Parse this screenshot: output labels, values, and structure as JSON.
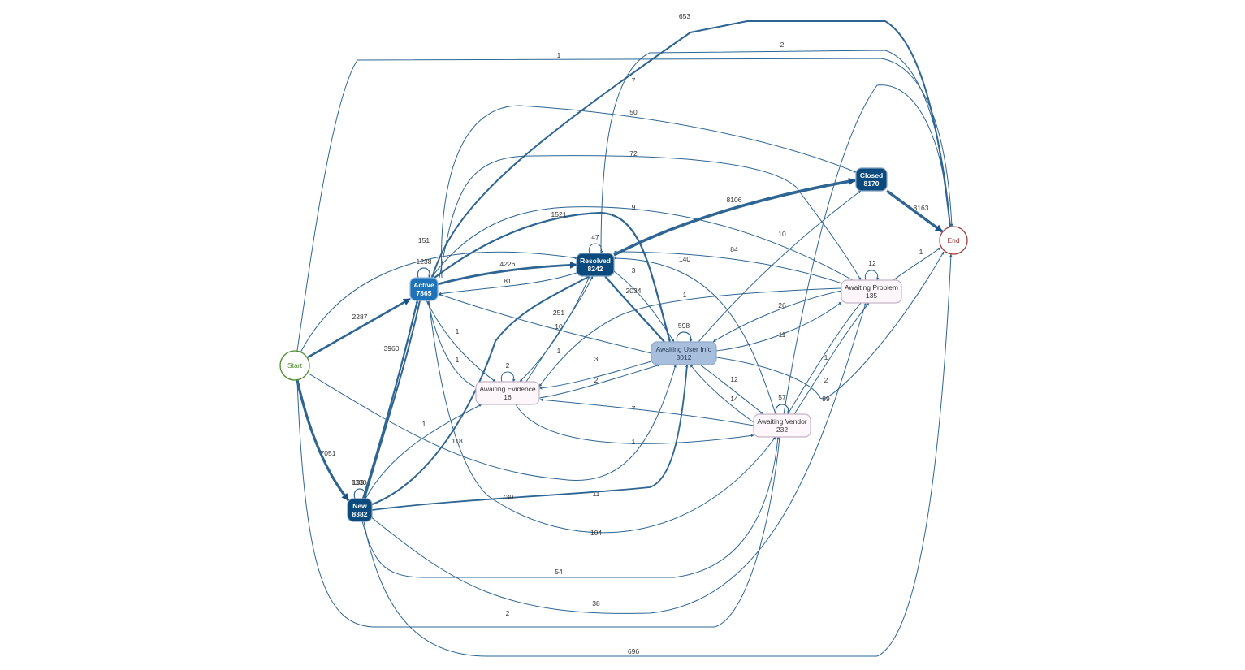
{
  "colors": {
    "edge": "#2e6593",
    "dark_node": "#0b4a7c",
    "active_node": "#1d72b8",
    "wait_user_node": "#a7bedd",
    "pink_node_fill": "#fdf6fa",
    "pink_node_stroke": "#c7b3c8",
    "start_stroke": "#4d8b2a",
    "end_stroke": "#a33b3b"
  },
  "nodes": {
    "start": {
      "label": "Start"
    },
    "end": {
      "label": "End"
    },
    "active": {
      "label": "Active",
      "count": "7865"
    },
    "new": {
      "label": "New",
      "count": "8382"
    },
    "resolved": {
      "label": "Resolved",
      "count": "8242"
    },
    "closed": {
      "label": "Closed",
      "count": "8170"
    },
    "awaiting_user_info": {
      "label": "Awaiting User Info",
      "count": "3012"
    },
    "awaiting_evidence": {
      "label": "Awaiting Evidence",
      "count": "16"
    },
    "awaiting_problem": {
      "label": "Awaiting Problem",
      "count": "135"
    },
    "awaiting_vendor": {
      "label": "Awaiting Vendor",
      "count": "232"
    }
  },
  "edges": [
    {
      "from": "start",
      "to": "active",
      "value": "2287"
    },
    {
      "from": "start",
      "to": "new",
      "value": "7051"
    },
    {
      "from": "start",
      "to": "resolved",
      "value": "151"
    },
    {
      "from": "start",
      "to": "end",
      "value": "1"
    },
    {
      "from": "start",
      "to": "awaiting_user_info",
      "value": "11"
    },
    {
      "from": "start",
      "to": "awaiting_vendor",
      "value": "2"
    },
    {
      "from": "active",
      "to": "active",
      "value": "1238"
    },
    {
      "from": "active",
      "to": "resolved",
      "value": "4226"
    },
    {
      "from": "resolved",
      "to": "active",
      "value": "81"
    },
    {
      "from": "active",
      "to": "end",
      "value": "653"
    },
    {
      "from": "active",
      "to": "closed",
      "value": "50"
    },
    {
      "from": "active",
      "to": "awaiting_problem",
      "value": "72"
    },
    {
      "from": "active",
      "to": "awaiting_user_info",
      "value": "1521"
    },
    {
      "from": "active",
      "to": "awaiting_evidence",
      "value": "1"
    },
    {
      "from": "awaiting_evidence",
      "to": "active",
      "value": "1"
    },
    {
      "from": "active",
      "to": "awaiting_vendor",
      "value": "104"
    },
    {
      "from": "active",
      "to": "new",
      "value": "1330"
    },
    {
      "from": "new",
      "to": "new",
      "value": "133"
    },
    {
      "from": "new",
      "to": "active",
      "value": "3960"
    },
    {
      "from": "new",
      "to": "resolved",
      "value": "251"
    },
    {
      "from": "new",
      "to": "awaiting_user_info",
      "value": "730"
    },
    {
      "from": "new",
      "to": "awaiting_evidence",
      "value": "1"
    },
    {
      "from": "new",
      "to": "awaiting_vendor",
      "value": "54"
    },
    {
      "from": "new",
      "to": "end",
      "value": "696"
    },
    {
      "from": "new",
      "to": "awaiting_problem",
      "value": "38"
    },
    {
      "from": "resolved",
      "to": "resolved",
      "value": "47"
    },
    {
      "from": "resolved",
      "to": "closed",
      "value": "8106"
    },
    {
      "from": "resolved",
      "to": "end",
      "value": "2"
    },
    {
      "from": "resolved",
      "to": "awaiting_user_info",
      "value": "3"
    },
    {
      "from": "awaiting_user_info",
      "to": "resolved",
      "value": "2034"
    },
    {
      "from": "resolved",
      "to": "awaiting_evidence",
      "value": "10"
    },
    {
      "from": "awaiting_evidence",
      "to": "resolved",
      "value": "1"
    },
    {
      "from": "closed",
      "to": "end",
      "value": "8163"
    },
    {
      "from": "awaiting_user_info",
      "to": "awaiting_user_info",
      "value": "598"
    },
    {
      "from": "awaiting_user_info",
      "to": "active",
      "value": "118"
    },
    {
      "from": "awaiting_user_info",
      "to": "closed",
      "value": "10"
    },
    {
      "from": "awaiting_problem",
      "to": "awaiting_user_info",
      "value": "26"
    },
    {
      "from": "awaiting_user_info",
      "to": "awaiting_problem",
      "value": "11"
    },
    {
      "from": "awaiting_user_info",
      "to": "awaiting_evidence",
      "value": "2"
    },
    {
      "from": "awaiting_evidence",
      "to": "awaiting_user_info",
      "value": "3"
    },
    {
      "from": "awaiting_user_info",
      "to": "awaiting_vendor",
      "value": "12"
    },
    {
      "from": "awaiting_vendor",
      "to": "awaiting_user_info",
      "value": "14"
    },
    {
      "from": "awaiting_user_info",
      "to": "end",
      "value": "99"
    },
    {
      "from": "awaiting_evidence",
      "to": "awaiting_evidence",
      "value": "2"
    },
    {
      "from": "awaiting_evidence",
      "to": "awaiting_vendor",
      "value": "1"
    },
    {
      "from": "awaiting_vendor",
      "to": "awaiting_evidence",
      "value": "7"
    },
    {
      "from": "awaiting_problem",
      "to": "awaiting_problem",
      "value": "12"
    },
    {
      "from": "awaiting_problem",
      "to": "resolved",
      "value": "84"
    },
    {
      "from": "awaiting_problem",
      "to": "end",
      "value": "1"
    },
    {
      "from": "awaiting_problem",
      "to": "active",
      "value": "9"
    },
    {
      "from": "awaiting_problem",
      "to": "awaiting_evidence",
      "value": "1"
    },
    {
      "from": "awaiting_problem",
      "to": "awaiting_vendor",
      "value": "1"
    },
    {
      "from": "awaiting_vendor",
      "to": "awaiting_problem",
      "value": "2"
    },
    {
      "from": "awaiting_vendor",
      "to": "awaiting_vendor",
      "value": "57"
    },
    {
      "from": "awaiting_vendor",
      "to": "resolved",
      "value": "140"
    },
    {
      "from": "awaiting_vendor",
      "to": "end",
      "value": "7"
    }
  ]
}
